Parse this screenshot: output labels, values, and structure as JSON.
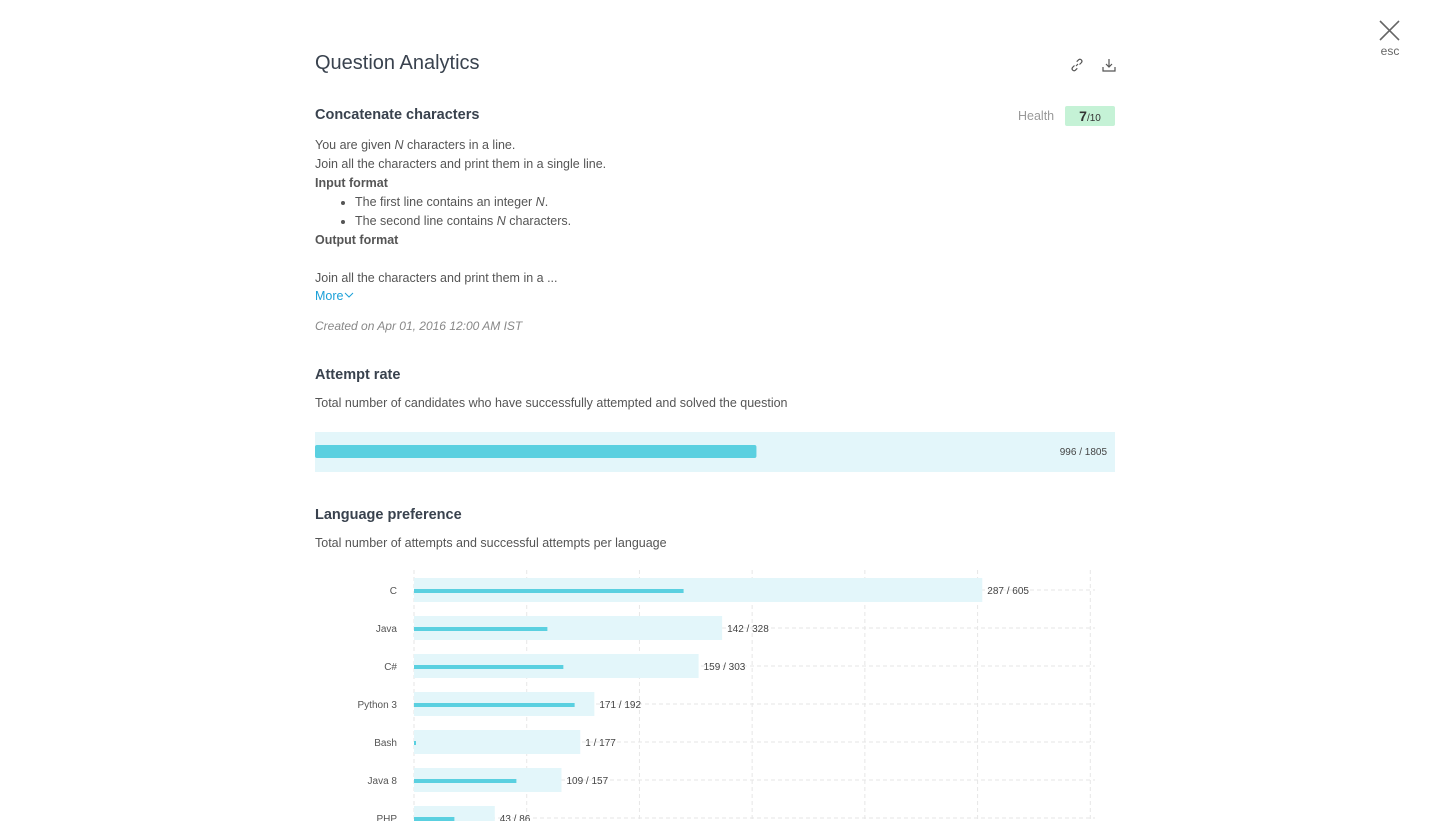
{
  "header": {
    "title": "Question Analytics",
    "close_label": "esc"
  },
  "question": {
    "title": "Concatenate characters",
    "health": {
      "label": "Health",
      "score": "7",
      "out_of": "/10"
    },
    "description": {
      "line_1": [
        "You are given ",
        "N",
        " characters in a line."
      ],
      "line_2": "Join all the characters and print them in a single line.",
      "input_heading": "Input format",
      "bullets": [
        [
          "The first line contains an integer ",
          "N",
          "."
        ],
        [
          "The second line contains ",
          "N",
          " characters."
        ]
      ],
      "output_heading": "Output format",
      "output_line": "Join all the characters and print them in a ..."
    },
    "more_link": "More",
    "created": "Created on Apr 01, 2016 12:00 AM IST"
  },
  "attempt_rate": {
    "title": "Attempt rate",
    "subtitle": "Total number of candidates who have successfully attempted and solved the question",
    "solved": 996,
    "attempted": 1805,
    "value_label": "996 / 1805"
  },
  "chart_data": {
    "type": "bar",
    "orientation": "horizontal",
    "title": "Language preference",
    "subtitle": "Total number of attempts and successful attempts per language",
    "categories": [
      "C",
      "Java",
      "C#",
      "Python 3",
      "Bash",
      "Java 8",
      "PHP"
    ],
    "series": [
      {
        "color": "#e3f6fa",
        "values": [
          605,
          328,
          303,
          192,
          177,
          157,
          86
        ]
      },
      {
        "color": "#5ad0e0",
        "values": [
          287,
          142,
          159,
          171,
          1,
          109,
          43
        ]
      }
    ],
    "value_labels": [
      "287 / 605",
      "142 / 328",
      "159 / 303",
      "171 / 192",
      "1 / 177",
      "109 / 157",
      "43 / 86"
    ],
    "xlim": [
      0,
      725
    ],
    "xticks": [
      0,
      120,
      240,
      360,
      480,
      600,
      720
    ],
    "grid": true
  }
}
